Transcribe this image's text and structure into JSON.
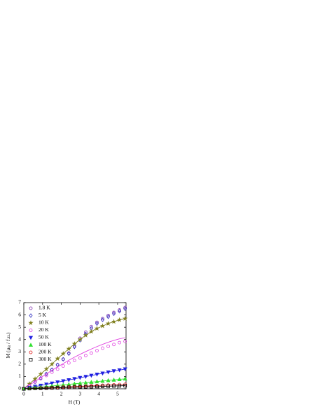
{
  "chart_data": {
    "type": "scatter",
    "xlabel": "H (T)",
    "ylabel_parts": [
      "M (μ",
      "B",
      " / f.u.)"
    ],
    "xlim": [
      0,
      5.45
    ],
    "ylim": [
      0,
      7
    ],
    "xticks": [
      0,
      1,
      2,
      3,
      4,
      5
    ],
    "yticks": [
      0,
      1,
      2,
      3,
      4,
      5,
      6,
      7
    ],
    "x": [
      0,
      0.3,
      0.6,
      0.9,
      1.2,
      1.5,
      1.8,
      2.1,
      2.4,
      2.7,
      3.0,
      3.3,
      3.6,
      3.9,
      4.2,
      4.5,
      4.8,
      5.1,
      5.4
    ],
    "series": [
      {
        "name": "1.8 K",
        "color": "#8030b0",
        "marker": "circle",
        "filled": false,
        "values": [
          0,
          0.25,
          0.55,
          0.85,
          1.2,
          1.55,
          1.95,
          2.4,
          2.9,
          3.5,
          4.1,
          4.6,
          5.05,
          5.4,
          5.7,
          5.95,
          6.2,
          6.4,
          6.6
        ]
      },
      {
        "name": "5 K",
        "color": "#3030c0",
        "marker": "diamond",
        "filled": false,
        "values": [
          0,
          0.25,
          0.55,
          0.85,
          1.2,
          1.55,
          1.95,
          2.4,
          2.85,
          3.4,
          3.95,
          4.45,
          4.9,
          5.3,
          5.6,
          5.85,
          6.1,
          6.3,
          6.5
        ]
      },
      {
        "name": "10 K",
        "color": "#808020",
        "marker": "star",
        "filled": true,
        "line": true,
        "values": [
          0,
          0.4,
          0.8,
          1.2,
          1.6,
          2.0,
          2.45,
          2.85,
          3.25,
          3.65,
          4.0,
          4.35,
          4.65,
          4.9,
          5.1,
          5.3,
          5.45,
          5.6,
          5.7
        ]
      },
      {
        "name": "20 K",
        "color": "#e040e0",
        "marker": "circle",
        "filled": false,
        "values": [
          0,
          0.27,
          0.55,
          0.82,
          1.08,
          1.35,
          1.6,
          1.85,
          2.1,
          2.3,
          2.5,
          2.7,
          2.9,
          3.1,
          3.3,
          3.45,
          3.6,
          3.75,
          3.85
        ],
        "fit": [
          0,
          0.3,
          0.6,
          0.9,
          1.2,
          1.5,
          1.78,
          2.05,
          2.32,
          2.57,
          2.8,
          3.02,
          3.23,
          3.43,
          3.61,
          3.78,
          3.93,
          4.06,
          4.15
        ]
      },
      {
        "name": "50 K",
        "color": "#2020e0",
        "marker": "tridown",
        "filled": true,
        "line": true,
        "values": [
          0,
          0.09,
          0.18,
          0.27,
          0.36,
          0.45,
          0.54,
          0.63,
          0.72,
          0.81,
          0.9,
          0.99,
          1.08,
          1.17,
          1.26,
          1.35,
          1.44,
          1.52,
          1.6
        ]
      },
      {
        "name": "100 K",
        "color": "#30e030",
        "marker": "triup",
        "filled": true,
        "line": true,
        "values": [
          0,
          0.045,
          0.09,
          0.135,
          0.18,
          0.225,
          0.27,
          0.315,
          0.36,
          0.405,
          0.45,
          0.495,
          0.54,
          0.585,
          0.63,
          0.675,
          0.72,
          0.765,
          0.81
        ]
      },
      {
        "name": "200 K",
        "color": "#e02020",
        "marker": "circle",
        "filled": false,
        "line": true,
        "values": [
          0,
          0.02,
          0.04,
          0.06,
          0.08,
          0.1,
          0.12,
          0.14,
          0.16,
          0.18,
          0.2,
          0.22,
          0.24,
          0.26,
          0.28,
          0.3,
          0.32,
          0.34,
          0.36
        ]
      },
      {
        "name": "300 K",
        "color": "#000000",
        "marker": "square",
        "filled": false,
        "line": true,
        "values": [
          0,
          0.014,
          0.028,
          0.042,
          0.056,
          0.07,
          0.084,
          0.098,
          0.112,
          0.126,
          0.14,
          0.154,
          0.168,
          0.182,
          0.196,
          0.21,
          0.224,
          0.238,
          0.252
        ]
      }
    ]
  }
}
